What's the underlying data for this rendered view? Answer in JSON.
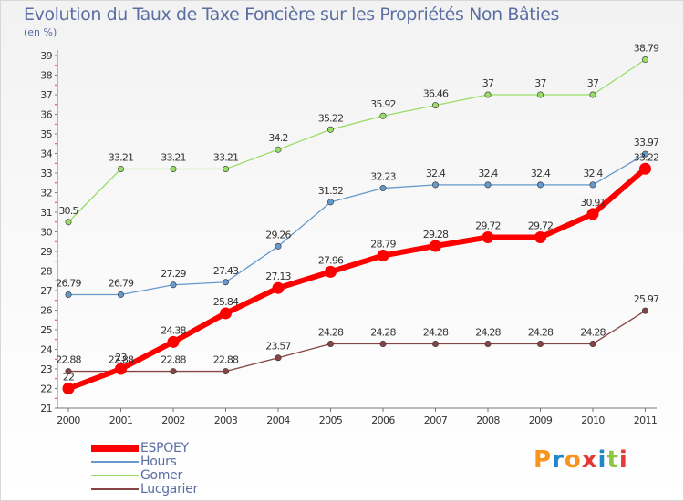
{
  "title": "Evolution du Taux de Taxe Foncière sur les Propriétés Non Bâties",
  "subtitle": "(en %)",
  "logo": {
    "chars": [
      "P",
      "r",
      "o",
      "x",
      "i",
      "t",
      "i"
    ],
    "colors": [
      "#f7941d",
      "#1e88c8",
      "#f7941d",
      "#e53935",
      "#1e88c8",
      "#8dc63f",
      "#e53935"
    ]
  },
  "chart_data": {
    "type": "line",
    "title": "Evolution du Taux de Taxe Foncière sur les Propriétés Non Bâties",
    "ylabel": "(en %)",
    "x": [
      "2000",
      "2001",
      "2002",
      "2003",
      "2004",
      "2005",
      "2006",
      "2007",
      "2008",
      "2009",
      "2010",
      "2011"
    ],
    "ylim": [
      21,
      39
    ],
    "yticks": [
      21,
      22,
      23,
      24,
      25,
      26,
      27,
      28,
      29,
      30,
      31,
      32,
      33,
      34,
      35,
      36,
      37,
      38,
      39
    ],
    "grid": false,
    "legend": "bottom-left",
    "series": [
      {
        "name": "ESPOEY",
        "color": "#ff0000",
        "values": [
          22,
          23,
          24.38,
          25.84,
          27.13,
          27.96,
          28.79,
          29.28,
          29.72,
          29.72,
          30.91,
          33.22
        ],
        "labels": [
          "22",
          "23",
          "24.38",
          "25.84",
          "27.13",
          "27.96",
          "28.79",
          "29.28",
          "29.72",
          "29.72",
          "30.91",
          "33.22"
        ]
      },
      {
        "name": "Hours",
        "color": "#6699cc",
        "values": [
          26.79,
          26.79,
          27.29,
          27.43,
          29.26,
          31.52,
          32.23,
          32.4,
          32.4,
          32.4,
          32.4,
          33.97
        ],
        "labels": [
          "26.79",
          "26.79",
          "27.29",
          "27.43",
          "29.26",
          "31.52",
          "32.23",
          "32.4",
          "32.4",
          "32.4",
          "32.4",
          "33.97"
        ]
      },
      {
        "name": "Gomer",
        "color": "#99dd66",
        "values": [
          30.5,
          33.21,
          33.21,
          33.21,
          34.2,
          35.22,
          35.92,
          36.46,
          37,
          37,
          37,
          38.79
        ],
        "labels": [
          "30.5",
          "33.21",
          "33.21",
          "33.21",
          "34.2",
          "35.22",
          "35.92",
          "36.46",
          "37",
          "37",
          "37",
          "38.79"
        ]
      },
      {
        "name": "Lucgarier",
        "color": "#884444",
        "values": [
          22.88,
          22.88,
          22.88,
          22.88,
          23.57,
          24.28,
          24.28,
          24.28,
          24.28,
          24.28,
          24.28,
          25.97
        ],
        "labels": [
          "22.88",
          "22.88",
          "22.88",
          "22.88",
          "23.57",
          "24.28",
          "24.28",
          "24.28",
          "24.28",
          "24.28",
          "24.28",
          "25.97"
        ]
      }
    ]
  }
}
